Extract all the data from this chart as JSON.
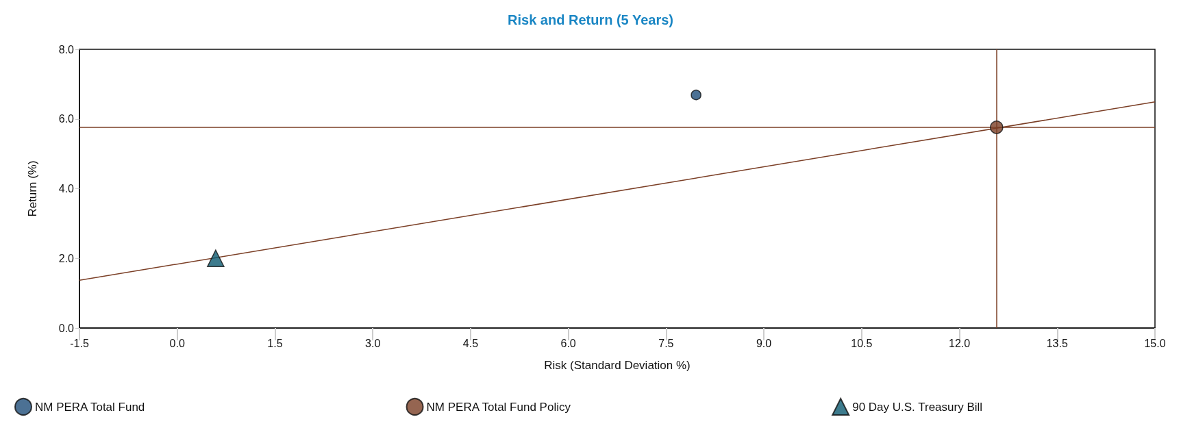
{
  "chart_data": {
    "type": "scatter",
    "title": "Risk and Return (5 Years)",
    "xlabel": "Risk (Standard Deviation %)",
    "ylabel": "Return (%)",
    "series": [
      {
        "name": "NM PERA Total Fund",
        "color": "#1f4e79",
        "marker": "circle",
        "x": [
          7.96
        ],
        "values": [
          6.69
        ]
      },
      {
        "name": "NM PERA Total Fund Policy",
        "color": "#7b3f26",
        "marker": "circle",
        "x": [
          12.57
        ],
        "values": [
          5.76
        ]
      },
      {
        "name": "90 Day U.S. Treasury Bill",
        "color": "#0d5a70",
        "marker": "triangle",
        "x": [
          0.59
        ],
        "values": [
          2.0
        ]
      },
      {
        "type": "line",
        "color": "#7b3f26",
        "x": [
          -1.5,
          15
        ],
        "values": [
          1.37,
          6.49
        ]
      }
    ],
    "ref_lines": [
      {
        "axis": "x",
        "value": 12.57,
        "color": "#7b3f26"
      },
      {
        "axis": "y",
        "value": 5.76,
        "color": "#7b3f26"
      }
    ],
    "xlim": [
      -1.5,
      15
    ],
    "ylim": [
      0,
      8
    ],
    "xticks": [
      -1.5,
      {
        "value": 0,
        "label": "0.0"
      },
      1.5,
      {
        "value": 3,
        "label": "3.0"
      },
      4.5,
      {
        "value": 6,
        "label": "6.0"
      },
      7.5,
      {
        "value": 9,
        "label": "9.0"
      },
      10.5,
      {
        "value": 12,
        "label": "12.0"
      },
      13.5,
      {
        "value": 15,
        "label": "15.0"
      }
    ],
    "yticks": [
      {
        "value": 0,
        "label": "0.0"
      },
      {
        "value": 2,
        "label": "2.0"
      },
      {
        "value": 4,
        "label": "4.0"
      },
      {
        "value": 6,
        "label": "6.0"
      },
      {
        "value": 8,
        "label": "8.0"
      }
    ],
    "grid": false,
    "legend": "bottom"
  }
}
